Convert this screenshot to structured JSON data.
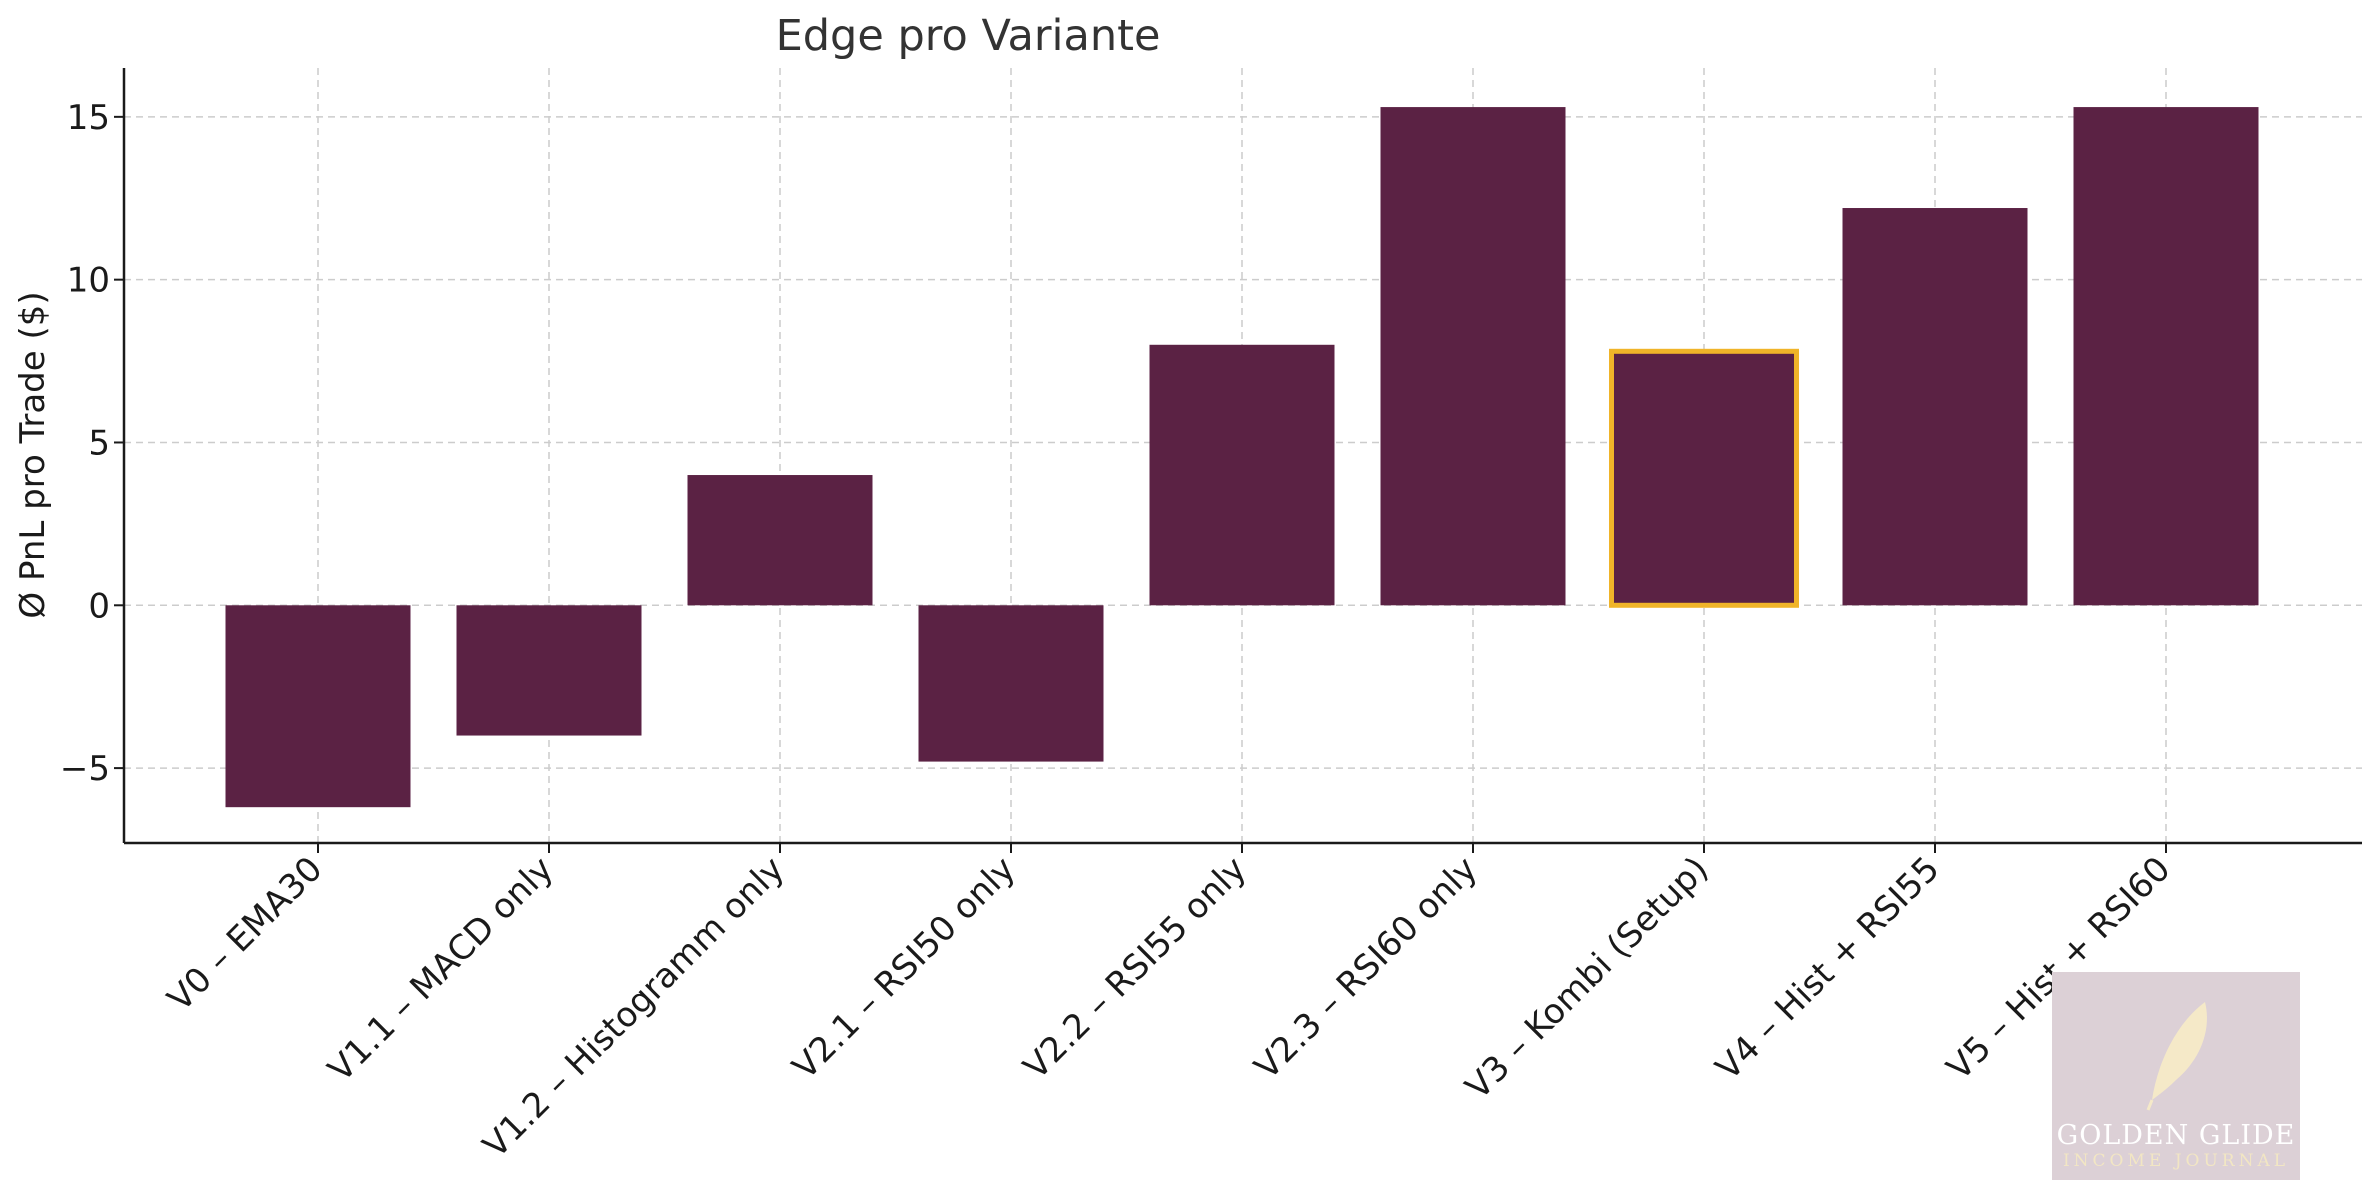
{
  "chart_data": {
    "type": "bar",
    "title": "Edge pro Variante",
    "xlabel": "",
    "ylabel": "Ø PnL pro Trade ($)",
    "categories": [
      "V0 – EMA30",
      "V1.1 – MACD only",
      "V1.2 – Histogramm only",
      "V2.1 – RSI50 only",
      "V2.2 – RSI55 only",
      "V2.3 – RSI60 only",
      "V3 – Kombi (Setup)",
      "V4 – Hist + RSI55",
      "V5 – Hist + RSI60"
    ],
    "values": [
      -6.2,
      -4.0,
      4.0,
      -4.8,
      8.0,
      15.3,
      7.8,
      12.2,
      15.3
    ],
    "highlight_index": 6,
    "ylim": [
      -7.3,
      16.5
    ],
    "yticks": [
      -5,
      0,
      5,
      10,
      15
    ],
    "ytick_labels": [
      "−5",
      "0",
      "5",
      "10",
      "15"
    ],
    "grid": true,
    "legend": "none",
    "colors": {
      "bar": "#5b2244",
      "highlight_edge": "#f0b429",
      "grid": "#cccccc",
      "axis": "#1a1a1a",
      "watermark_bg": "#dcd0d6",
      "watermark_feather": "#f5e9c8"
    }
  },
  "watermark": {
    "name": "GOLDEN GLIDE",
    "subtitle": "INCOME JOURNAL",
    "icon": "feather-icon"
  }
}
